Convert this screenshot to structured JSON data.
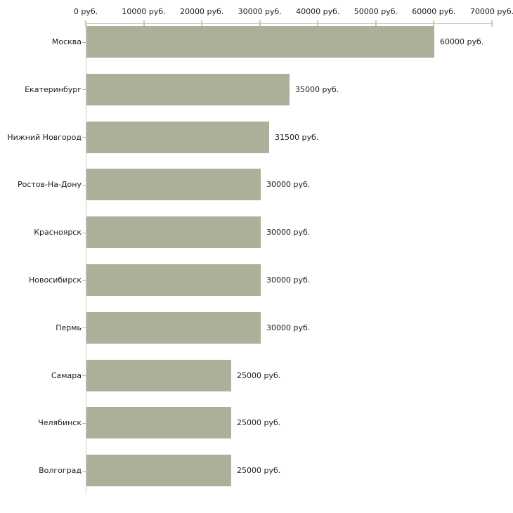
{
  "chart_data": {
    "type": "bar",
    "orientation": "horizontal",
    "title": "",
    "xlabel": "",
    "ylabel": "",
    "value_suffix": " руб.",
    "categories": [
      "Москва",
      "Екатеринбург",
      "Нижний Новгород",
      "Ростов-На-Дону",
      "Красноярск",
      "Новосибирск",
      "Пермь",
      "Самара",
      "Челябинск",
      "Волгоград"
    ],
    "values": [
      60000,
      35000,
      31500,
      30000,
      30000,
      30000,
      30000,
      25000,
      25000,
      25000
    ],
    "value_labels": [
      "60000 руб.",
      "35000 руб.",
      "31500 руб.",
      "30000 руб.",
      "30000 руб.",
      "30000 руб.",
      "30000 руб.",
      "25000 руб.",
      "25000 руб.",
      "25000 руб."
    ],
    "x_ticks": [
      {
        "value": 0,
        "label": "0 руб."
      },
      {
        "value": 10000,
        "label": "10000 руб."
      },
      {
        "value": 20000,
        "label": "20000 руб."
      },
      {
        "value": 30000,
        "label": "30000 руб."
      },
      {
        "value": 40000,
        "label": "40000 руб."
      },
      {
        "value": 50000,
        "label": "50000 руб."
      },
      {
        "value": 60000,
        "label": "60000 руб."
      },
      {
        "value": 70000,
        "label": "70000 руб."
      }
    ],
    "xlim": [
      0,
      70000
    ],
    "grid": false,
    "legend_position": "none",
    "colors": {
      "bar": "#abb199",
      "axis": "#cccccc",
      "tick": "#ccc9a0",
      "category_tick": "#b9b694",
      "text": "#1c1c1c",
      "background": "#ffffff"
    }
  }
}
